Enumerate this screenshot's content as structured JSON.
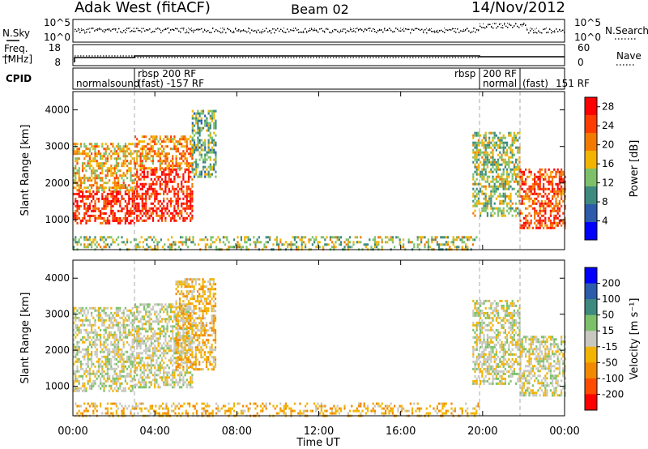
{
  "header": {
    "station": "Adak West (fitACF)",
    "beam": "Beam 02",
    "date": "14/Nov/2012"
  },
  "strips": {
    "noise": {
      "left_label": "N.Sky",
      "left_ticks": [
        "10^5",
        "10^0"
      ],
      "right_label": "N.Search",
      "right_ticks": [
        "10^5",
        "10^0"
      ]
    },
    "freq": {
      "left_label_1": "Freq.",
      "left_label_2": "[MHz]",
      "left_ticks": [
        "18",
        "8"
      ],
      "right_label": "Nave",
      "right_ticks": [
        "60",
        "0"
      ]
    },
    "cpid": {
      "label": "CPID",
      "segments": [
        "normalsound (fast) -157 RF",
        "rbsp 200 RF",
        "rbsp 200 RF normal (fast) 151 RF"
      ],
      "text_items": [
        "normalsound",
        "rbsp 200 RF",
        "(fast) -157 RF",
        "rbsp",
        "200 RF",
        "normal",
        "(fast)",
        "151 RF"
      ]
    }
  },
  "axes": {
    "ylabel": "Slant Range [km]",
    "xlabel": "Time UT",
    "yticks": [
      "4000",
      "3000",
      "2000",
      "1000"
    ],
    "xticks": [
      "00:00",
      "04:00",
      "08:00",
      "12:00",
      "16:00",
      "20:00",
      "00:00"
    ]
  },
  "chart_data": [
    {
      "type": "heatmap",
      "title": "Power",
      "colorbar_label": "Power [dB]",
      "colorbar_ticks": [
        "28",
        "24",
        "20",
        "16",
        "12",
        "8",
        "4"
      ],
      "colorbar_range": [
        0,
        30
      ],
      "colors": [
        "#0000ff",
        "#2c5cab",
        "#3e8a7e",
        "#7cc16a",
        "#f2b400",
        "#f27a00",
        "#ff3c00",
        "#ff0000"
      ],
      "xlim_hours": [
        0,
        24
      ],
      "ylim_km": [
        180,
        4500
      ],
      "cpid_changes_hours": [
        3.0,
        19.8,
        21.8
      ],
      "echo_regions": [
        {
          "t": [
            0.0,
            3.0
          ],
          "range_km": [
            900,
            1800
          ],
          "power_db": 26
        },
        {
          "t": [
            0.0,
            3.0
          ],
          "range_km": [
            1800,
            3100
          ],
          "power_db": 18
        },
        {
          "t": [
            3.0,
            5.8
          ],
          "range_km": [
            1000,
            2400
          ],
          "power_db": 26
        },
        {
          "t": [
            3.0,
            5.8
          ],
          "range_km": [
            2400,
            3300
          ],
          "power_db": 20
        },
        {
          "t": [
            5.8,
            7.0
          ],
          "range_km": [
            2200,
            4000
          ],
          "power_db": 12
        },
        {
          "t": [
            0.0,
            19.8
          ],
          "range_km": [
            180,
            550
          ],
          "power_db": 14
        },
        {
          "t": [
            19.5,
            21.8
          ],
          "range_km": [
            1100,
            3400
          ],
          "power_db": 14
        },
        {
          "t": [
            21.8,
            24.0
          ],
          "range_km": [
            750,
            2400
          ],
          "power_db": 24
        }
      ]
    },
    {
      "type": "heatmap",
      "title": "Velocity",
      "colorbar_label": "Velocity [m s⁻¹]",
      "colorbar_ticks": [
        "200",
        "100",
        "50",
        "15",
        "-15",
        "-50",
        "-100",
        "-200"
      ],
      "colorbar_range": [
        -250,
        250
      ],
      "colors": [
        "#ff0000",
        "#ff4c00",
        "#f28a00",
        "#f2b400",
        "#c8c8c0",
        "#7cc16a",
        "#3e8a7e",
        "#2c5cab",
        "#0000ff"
      ],
      "xlim_hours": [
        0,
        24
      ],
      "ylim_km": [
        180,
        4500
      ],
      "echo_regions": [
        {
          "t": [
            0.0,
            3.0
          ],
          "range_km": [
            900,
            3200
          ],
          "velocity": 0
        },
        {
          "t": [
            3.0,
            5.8
          ],
          "range_km": [
            1000,
            3300
          ],
          "velocity": 0
        },
        {
          "t": [
            5.0,
            7.0
          ],
          "range_km": [
            1500,
            4000
          ],
          "velocity": -60
        },
        {
          "t": [
            0.0,
            19.8
          ],
          "range_km": [
            180,
            550
          ],
          "velocity": -60
        },
        {
          "t": [
            19.5,
            21.8
          ],
          "range_km": [
            1100,
            3400
          ],
          "velocity": 0
        },
        {
          "t": [
            21.8,
            24.0
          ],
          "range_km": [
            750,
            2400
          ],
          "velocity": 0
        }
      ]
    }
  ]
}
